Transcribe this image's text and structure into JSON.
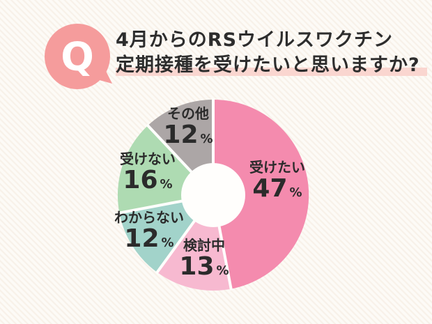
{
  "question": {
    "bubble_letter": "Q",
    "bubble_color": "#F59C9C",
    "title_line1": "4月からのRSウイルスワクチン",
    "title_line2": "定期接種を受けたいと思いますか?",
    "highlight_color": "#FAD6D0",
    "text_color": "#2d2d2d"
  },
  "chart_data": {
    "type": "pie",
    "donut": true,
    "start_angle_deg": 0,
    "direction": "clockwise",
    "title": "4月からのRSウイルスワクチン定期接種を受けたいと思いますか?",
    "unit": "%",
    "segments": [
      {
        "label": "受けたい",
        "value": 47,
        "color": "#F48BAE"
      },
      {
        "label": "検討中",
        "value": 13,
        "color": "#F7B9D0"
      },
      {
        "label": "わからない",
        "value": 12,
        "color": "#A2D3CA"
      },
      {
        "label": "受けない",
        "value": 16,
        "color": "#AEDBB2"
      },
      {
        "label": "その他",
        "value": 12,
        "color": "#ACA6A6"
      }
    ],
    "hole_color": "#FFFEFC",
    "gap_color": "#FFFEFC",
    "label_color": "#2b2b2b"
  }
}
